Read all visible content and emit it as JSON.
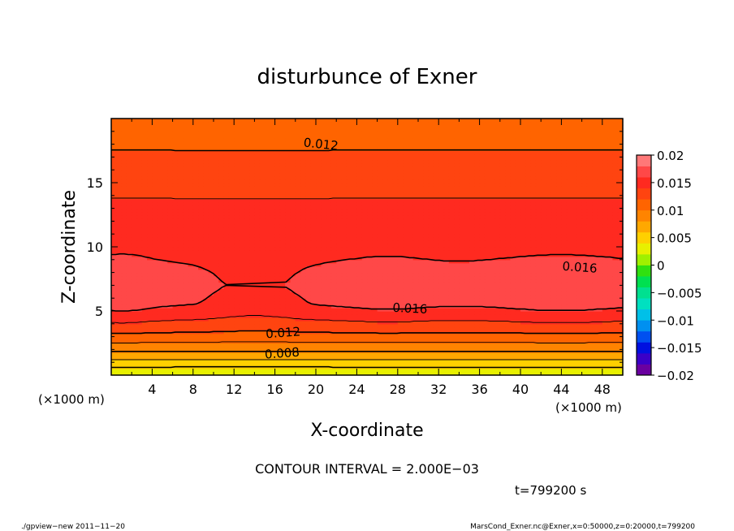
{
  "chart_data": {
    "type": "heatmap",
    "title": "disturbunce of Exner",
    "xlabel": "X-coordinate",
    "ylabel": "Z-coordinate",
    "x_unit_left": "(×1000 m)",
    "x_unit_right": "(×1000 m)",
    "xlim": [
      0,
      50
    ],
    "ylim": [
      0,
      20
    ],
    "x_ticks": [
      "4",
      "8",
      "12",
      "16",
      "20",
      "24",
      "28",
      "32",
      "36",
      "40",
      "44",
      "48"
    ],
    "y_ticks": [
      "5",
      "10",
      "15"
    ],
    "colorbar": {
      "ticks": [
        "0.02",
        "0.015",
        "0.01",
        "0.005",
        "0",
        "−0.005",
        "−0.01",
        "−0.015",
        "−0.02"
      ],
      "range": [
        -0.02,
        0.02
      ],
      "levels": 20
    },
    "contour_labels": [
      "0.012",
      "0.016",
      "0.016",
      "0.012",
      "0.008"
    ],
    "contour_interval_text": "CONTOUR INTERVAL = 2.000E−03",
    "time_text": "t=799200 s",
    "footer_left": "./gpview−new   2011−11−20",
    "footer_right": "MarsCond_Exner.nc@Exner,x=0:50000,z=0:20000,t=799200",
    "profile": {
      "z": [
        0,
        0.3,
        0.6,
        1,
        1.5,
        2,
        2.7,
        3.5,
        4.5,
        5.5,
        7,
        9,
        11,
        13,
        15,
        16.5,
        17.5,
        18.5,
        19.5,
        20
      ],
      "value": [
        0.002,
        0.003,
        0.004,
        0.0055,
        0.007,
        0.0085,
        0.0105,
        0.0125,
        0.0145,
        0.0162,
        0.0168,
        0.0159,
        0.015,
        0.0143,
        0.0135,
        0.0127,
        0.012,
        0.0115,
        0.011,
        0.0108
      ]
    }
  }
}
